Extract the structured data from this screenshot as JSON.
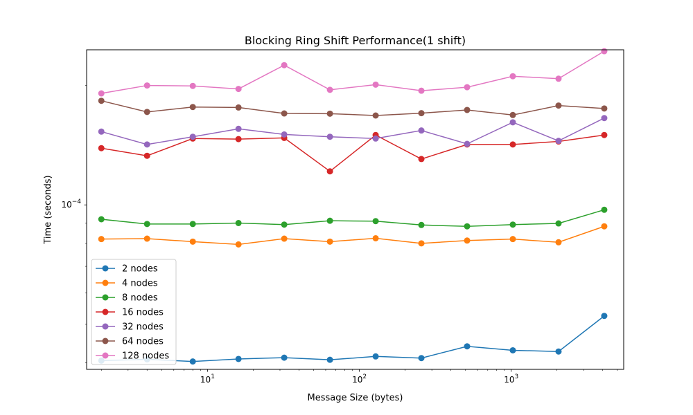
{
  "chart_data": {
    "type": "line",
    "title": "Blocking Ring Shift Performance(1 shift)",
    "xlabel": "Message Size (bytes)",
    "ylabel": "Time (seconds)",
    "xscale": "log",
    "yscale": "log",
    "xlim": [
      1.6,
      5500
    ],
    "ylim": [
      3.85e-05,
      0.000246
    ],
    "x_ticks": [
      {
        "value": 10,
        "base": "10",
        "exp": "1"
      },
      {
        "value": 100,
        "base": "10",
        "exp": "2"
      },
      {
        "value": 1000,
        "base": "10",
        "exp": "3"
      }
    ],
    "y_ticks": [
      {
        "value": 0.0001,
        "base": "10",
        "exp": "−4"
      }
    ],
    "grid": false,
    "legend_position": "lower-left",
    "x": [
      2,
      4,
      8,
      16,
      32,
      64,
      128,
      256,
      512,
      1024,
      2048,
      4096
    ],
    "series": [
      {
        "name": "2 nodes",
        "color": "#1f77b4",
        "values": [
          4.05e-05,
          4.08e-05,
          4.03e-05,
          4.09e-05,
          4.12e-05,
          4.07e-05,
          4.15e-05,
          4.11e-05,
          4.4e-05,
          4.3e-05,
          4.27e-05,
          5.25e-05
        ]
      },
      {
        "name": "4 nodes",
        "color": "#ff7f0e",
        "values": [
          8.2e-05,
          8.22e-05,
          8.08e-05,
          7.95e-05,
          8.22e-05,
          8.08e-05,
          8.24e-05,
          8e-05,
          8.13e-05,
          8.2e-05,
          8.05e-05,
          8.83e-05
        ]
      },
      {
        "name": "8 nodes",
        "color": "#2ca02c",
        "values": [
          9.2e-05,
          8.95e-05,
          8.95e-05,
          9e-05,
          8.92e-05,
          9.12e-05,
          9.1e-05,
          8.9e-05,
          8.83e-05,
          8.92e-05,
          8.98e-05,
          9.72e-05
        ]
      },
      {
        "name": "16 nodes",
        "color": "#d62728",
        "values": [
          0.000139,
          0.000133,
          0.000147,
          0.0001465,
          0.0001475,
          0.0001215,
          0.00015,
          0.0001305,
          0.000142,
          0.000142,
          0.0001445,
          0.00015
        ]
      },
      {
        "name": "32 nodes",
        "color": "#9467bd",
        "values": [
          0.000153,
          0.000142,
          0.0001485,
          0.0001555,
          0.0001505,
          0.0001485,
          0.000147,
          0.000154,
          0.0001425,
          0.0001615,
          0.000145,
          0.0001655
        ]
      },
      {
        "name": "64 nodes",
        "color": "#8c564b",
        "values": [
          0.000183,
          0.0001715,
          0.0001765,
          0.000176,
          0.00017,
          0.0001698,
          0.000168,
          0.0001703,
          0.0001735,
          0.0001685,
          0.000178,
          0.000175
        ]
      },
      {
        "name": "128 nodes",
        "color": "#e377c2",
        "values": [
          0.000191,
          0.0002,
          0.0001995,
          0.000196,
          0.000225,
          0.000195,
          0.000201,
          0.000194,
          0.000198,
          0.000211,
          0.000208,
          0.000244
        ]
      }
    ]
  }
}
